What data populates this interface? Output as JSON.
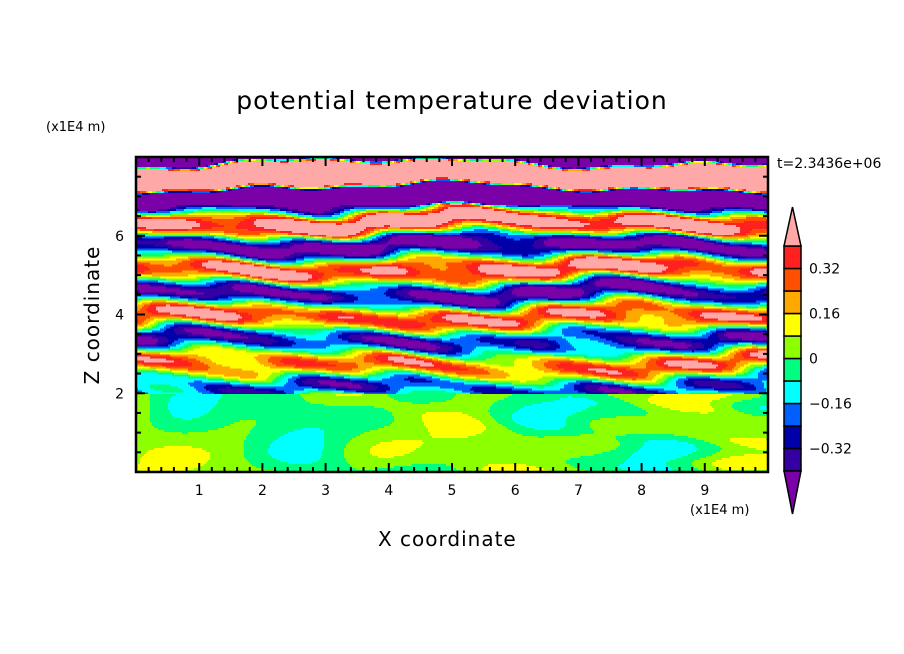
{
  "chart_data": {
    "type": "heatmap",
    "title": "potential temperature deviation",
    "xlabel": "X coordinate",
    "ylabel": "Z coordinate",
    "x_unit": "(x1E4 m)",
    "y_unit": "(x1E4 m)",
    "xlim": [
      0,
      10
    ],
    "ylim": [
      0,
      8
    ],
    "x_ticks": [
      "1",
      "2",
      "3",
      "4",
      "5",
      "6",
      "7",
      "8",
      "9"
    ],
    "y_ticks": [
      "2",
      "4",
      "6"
    ],
    "annotation": "t=2.3436e+06",
    "colorbar": {
      "levels": [
        -0.4,
        -0.32,
        -0.24,
        -0.16,
        -0.08,
        0,
        0.08,
        0.16,
        0.24,
        0.32,
        0.4
      ],
      "tick_labels": [
        "0.32",
        "0.16",
        "0",
        "−0.16",
        "−0.32"
      ],
      "tick_values": [
        0.32,
        0.16,
        0,
        -0.16,
        -0.32
      ],
      "colors": [
        "#7a00a8",
        "#3400a4",
        "#0000a8",
        "#0060ff",
        "#00ffff",
        "#00ff80",
        "#8cff00",
        "#ffff00",
        "#ffa800",
        "#ff5000",
        "#ff2020",
        "#ffa8a8"
      ],
      "extend": "both"
    }
  }
}
